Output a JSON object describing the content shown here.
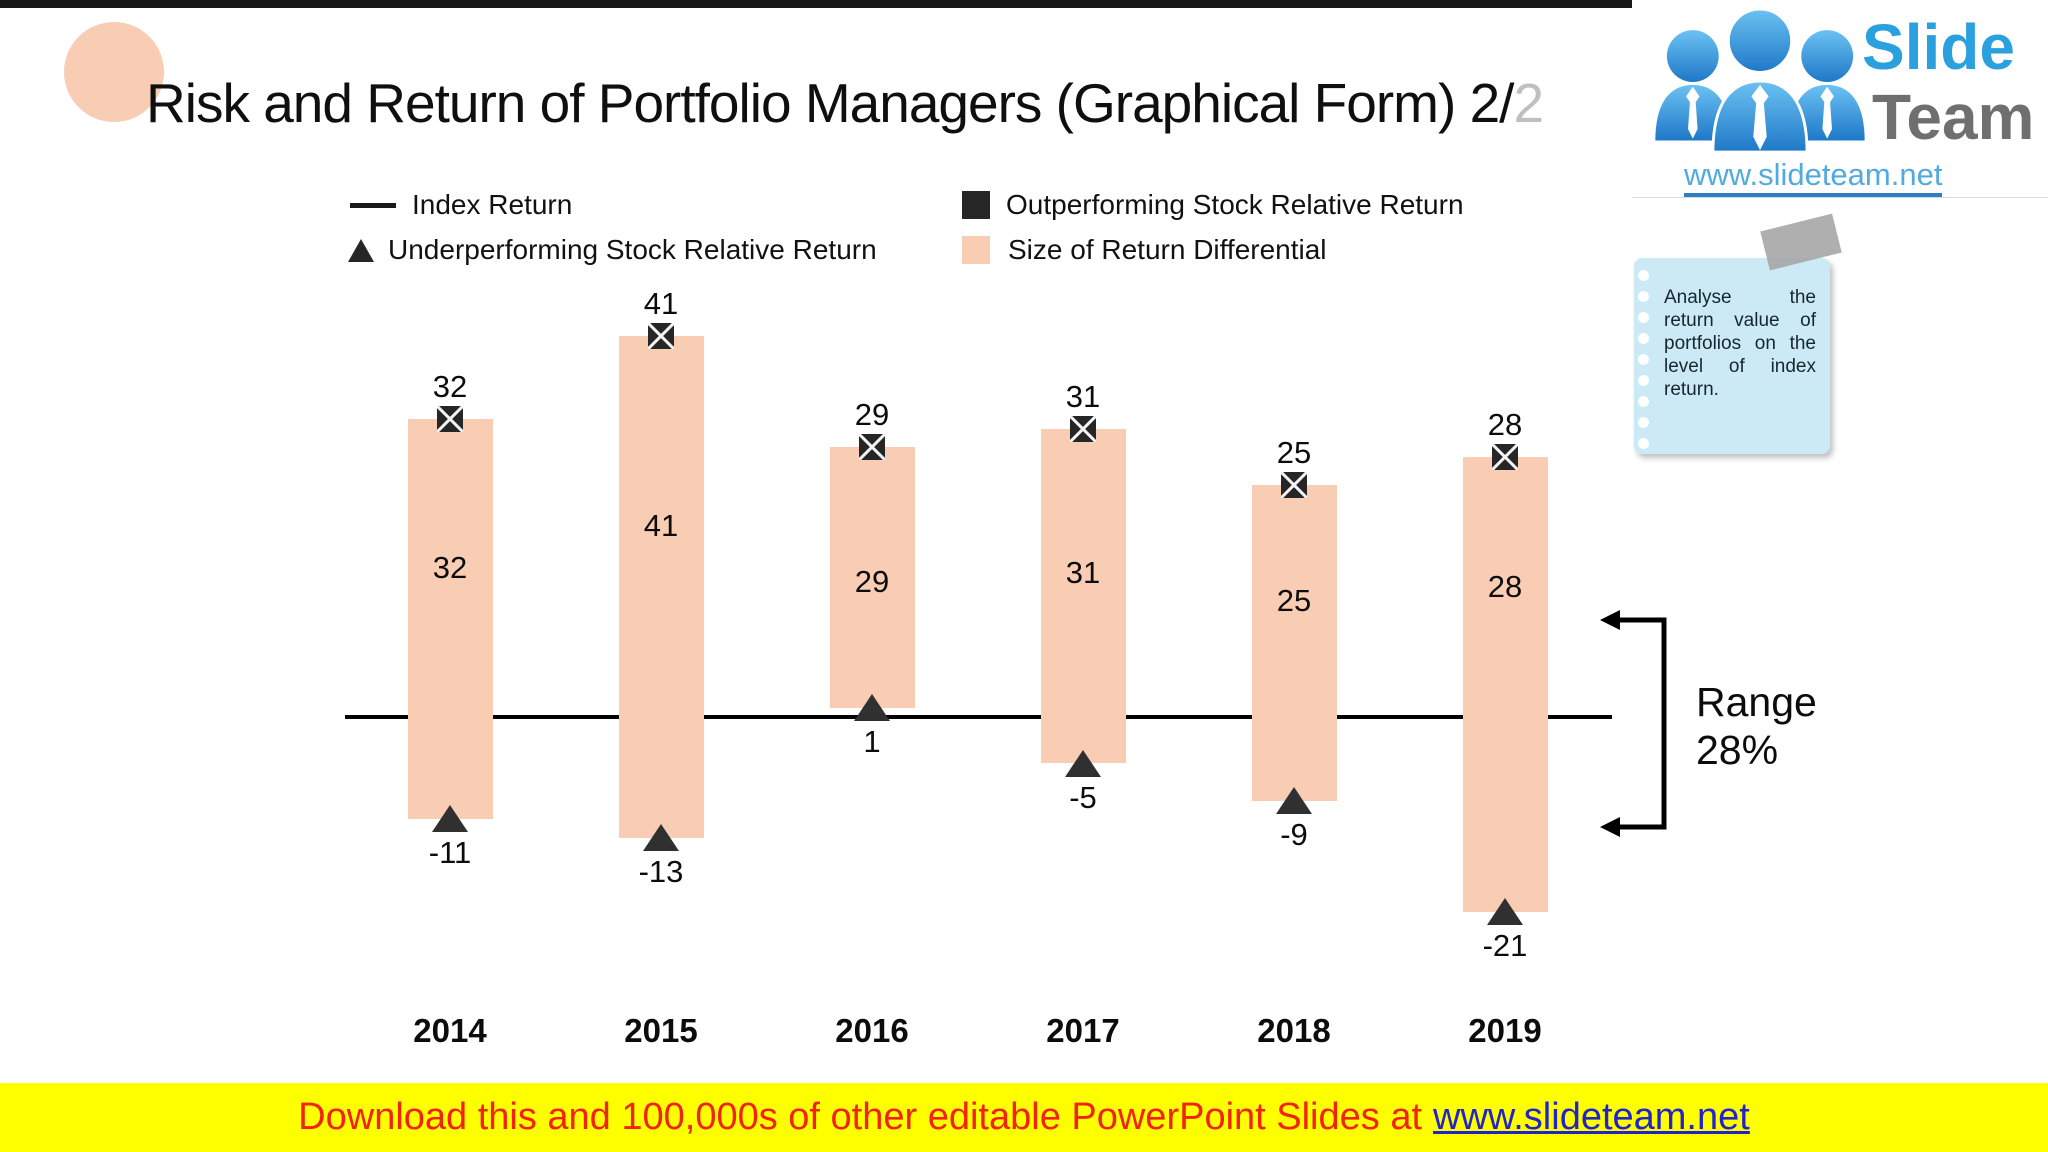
{
  "slide": {
    "title": {
      "main": "Risk and Return of Portfolio Managers (Graphical Form) 2/",
      "suffix": "2"
    }
  },
  "legend": {
    "index_return": "Index Return",
    "underperforming": "Underperforming Stock Relative Return",
    "outperforming": "Outperforming Stock Relative Return",
    "differential": "Size of Return Differential"
  },
  "chart_data": {
    "type": "bar",
    "subtype": "floating-range-bars",
    "categories": [
      "2014",
      "2015",
      "2016",
      "2017",
      "2018",
      "2019"
    ],
    "series": [
      {
        "name": "Outperforming Stock Relative Return",
        "marker": "filled-square-x",
        "values": [
          32,
          41,
          29,
          31,
          25,
          28
        ]
      },
      {
        "name": "Underperforming Stock Relative Return",
        "marker": "filled-triangle-up",
        "values": [
          -11,
          -13,
          1,
          -5,
          -9,
          -21
        ]
      },
      {
        "name": "Size of Return Differential",
        "role": "range-bar",
        "bar_labels": [
          32,
          41,
          29,
          31,
          25,
          28
        ]
      }
    ],
    "index_return_line": 0,
    "annotation": {
      "line1": "Range",
      "line2": "28%"
    },
    "ylim": [
      -25,
      45
    ],
    "grid": false,
    "legend_position": "top",
    "colors": {
      "bar": "#F9CDB4",
      "marker": "#262626",
      "axis_line": "#000000"
    }
  },
  "note": {
    "text": "Analyse the return value of portfolios on the level of index return."
  },
  "logo": {
    "slide": "Slide",
    "team": "Team",
    "url": "www.slideteam.net"
  },
  "banner": {
    "text": "Download this and 100,000s of other editable PowerPoint Slides at",
    "link": "www.slideteam.net"
  }
}
